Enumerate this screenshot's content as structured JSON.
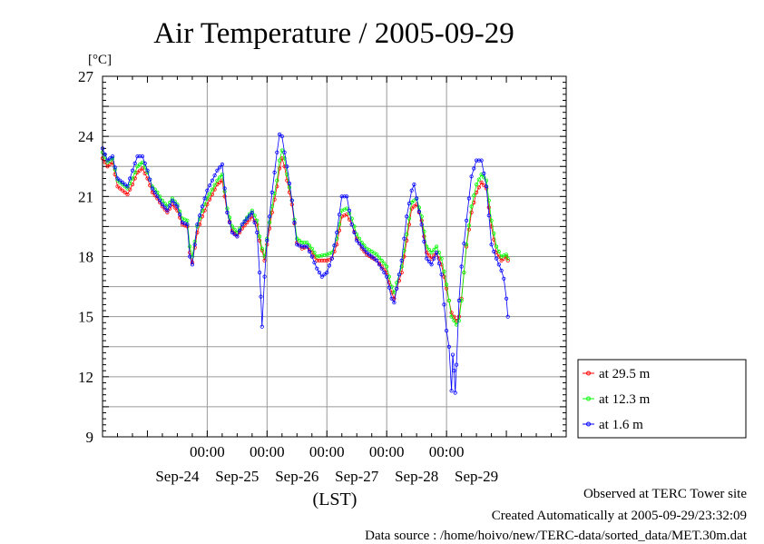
{
  "chart_data": {
    "type": "line",
    "title": "Air Temperature / 2005-09-29",
    "ylabel": "[°C]",
    "xlabel": "(LST)",
    "ylim": [
      9,
      27
    ],
    "yticks": [
      9,
      12,
      15,
      18,
      21,
      24,
      27
    ],
    "xlim_hours": [
      -42,
      144
    ],
    "x_time_labels": [
      {
        "hour": 0,
        "label": "00:00"
      },
      {
        "hour": 24,
        "label": "00:00"
      },
      {
        "hour": 48,
        "label": "00:00"
      },
      {
        "hour": 72,
        "label": "00:00"
      },
      {
        "hour": 96,
        "label": "00:00"
      }
    ],
    "x_date_labels": [
      {
        "hour": -12,
        "label": "Sep-24"
      },
      {
        "hour": 12,
        "label": "Sep-25"
      },
      {
        "hour": 36,
        "label": "Sep-26"
      },
      {
        "hour": 60,
        "label": "Sep-27"
      },
      {
        "hour": 84,
        "label": "Sep-28"
      },
      {
        "hour": 108,
        "label": "Sep-29"
      }
    ],
    "grid": true,
    "legend_position": "right",
    "series": [
      {
        "name": "at 29.5 m",
        "color": "#ff0000",
        "points": [
          [
            -42,
            22.9
          ],
          [
            -40,
            22.5
          ],
          [
            -38,
            22.7
          ],
          [
            -36,
            21.5
          ],
          [
            -32,
            21.1
          ],
          [
            -30,
            21.6
          ],
          [
            -28,
            22.2
          ],
          [
            -26,
            22.4
          ],
          [
            -24,
            21.9
          ],
          [
            -22,
            21.2
          ],
          [
            -20,
            20.9
          ],
          [
            -18,
            20.5
          ],
          [
            -16,
            20.2
          ],
          [
            -14,
            20.6
          ],
          [
            -12,
            20.3
          ],
          [
            -10,
            19.6
          ],
          [
            -8,
            19.5
          ],
          [
            -7,
            18.2
          ],
          [
            -6,
            17.7
          ],
          [
            -4,
            19.2
          ],
          [
            -2,
            20.0
          ],
          [
            0,
            20.6
          ],
          [
            4,
            21.6
          ],
          [
            6,
            21.8
          ],
          [
            8,
            20.2
          ],
          [
            10,
            19.3
          ],
          [
            12,
            19.0
          ],
          [
            14,
            19.4
          ],
          [
            18,
            20.0
          ],
          [
            20,
            19.6
          ],
          [
            21,
            18.8
          ],
          [
            22,
            18.3
          ],
          [
            23,
            17.8
          ],
          [
            24,
            18.6
          ],
          [
            26,
            20.2
          ],
          [
            28,
            21.5
          ],
          [
            29,
            22.4
          ],
          [
            30,
            22.9
          ],
          [
            31,
            22.5
          ],
          [
            32,
            21.8
          ],
          [
            34,
            20.6
          ],
          [
            36,
            18.7
          ],
          [
            38,
            18.4
          ],
          [
            40,
            18.5
          ],
          [
            42,
            18.2
          ],
          [
            44,
            17.8
          ],
          [
            48,
            17.8
          ],
          [
            50,
            17.9
          ],
          [
            52,
            18.6
          ],
          [
            54,
            20.0
          ],
          [
            56,
            20.1
          ],
          [
            58,
            19.6
          ],
          [
            60,
            18.9
          ],
          [
            62,
            18.4
          ],
          [
            64,
            18.1
          ],
          [
            68,
            17.8
          ],
          [
            70,
            17.5
          ],
          [
            72,
            17.2
          ],
          [
            74,
            16.2
          ],
          [
            75,
            15.9
          ],
          [
            76,
            16.4
          ],
          [
            78,
            17.2
          ],
          [
            80,
            18.8
          ],
          [
            82,
            20.4
          ],
          [
            84,
            20.6
          ],
          [
            86,
            19.8
          ],
          [
            88,
            18.2
          ],
          [
            90,
            17.9
          ],
          [
            92,
            18.2
          ],
          [
            94,
            17.6
          ],
          [
            96,
            16.4
          ],
          [
            98,
            15.2
          ],
          [
            100,
            14.8
          ],
          [
            101,
            15.0
          ],
          [
            102,
            15.9
          ],
          [
            104,
            18.5
          ],
          [
            106,
            20.2
          ],
          [
            108,
            21.2
          ],
          [
            110,
            21.7
          ],
          [
            112,
            21.4
          ],
          [
            114,
            19.5
          ],
          [
            116,
            18.2
          ],
          [
            118,
            17.8
          ],
          [
            120,
            18.0
          ],
          [
            120.6,
            17.8
          ]
        ]
      },
      {
        "name": "at 12.3 m",
        "color": "#00ff00",
        "points": [
          [
            -42,
            23.2
          ],
          [
            -40,
            22.7
          ],
          [
            -38,
            22.9
          ],
          [
            -36,
            21.8
          ],
          [
            -32,
            21.4
          ],
          [
            -30,
            21.9
          ],
          [
            -28,
            22.5
          ],
          [
            -26,
            22.7
          ],
          [
            -24,
            22.2
          ],
          [
            -22,
            21.5
          ],
          [
            -20,
            21.2
          ],
          [
            -18,
            20.8
          ],
          [
            -16,
            20.5
          ],
          [
            -14,
            20.9
          ],
          [
            -12,
            20.6
          ],
          [
            -10,
            19.9
          ],
          [
            -8,
            19.8
          ],
          [
            -7,
            18.5
          ],
          [
            -6,
            18.0
          ],
          [
            -4,
            19.5
          ],
          [
            -2,
            20.3
          ],
          [
            0,
            20.9
          ],
          [
            4,
            21.8
          ],
          [
            6,
            22.1
          ],
          [
            8,
            20.4
          ],
          [
            10,
            19.5
          ],
          [
            12,
            19.2
          ],
          [
            14,
            19.6
          ],
          [
            18,
            20.3
          ],
          [
            20,
            19.8
          ],
          [
            21,
            19.0
          ],
          [
            22,
            18.4
          ],
          [
            23,
            18.0
          ],
          [
            24,
            18.9
          ],
          [
            26,
            20.5
          ],
          [
            28,
            21.8
          ],
          [
            29,
            22.8
          ],
          [
            30,
            23.3
          ],
          [
            31,
            22.9
          ],
          [
            32,
            22.1
          ],
          [
            34,
            20.8
          ],
          [
            36,
            18.9
          ],
          [
            38,
            18.7
          ],
          [
            40,
            18.7
          ],
          [
            42,
            18.4
          ],
          [
            44,
            18.0
          ],
          [
            48,
            18.1
          ],
          [
            50,
            18.2
          ],
          [
            52,
            18.9
          ],
          [
            54,
            20.3
          ],
          [
            56,
            20.4
          ],
          [
            58,
            19.9
          ],
          [
            60,
            19.1
          ],
          [
            62,
            18.7
          ],
          [
            64,
            18.4
          ],
          [
            68,
            18.1
          ],
          [
            70,
            17.8
          ],
          [
            72,
            17.5
          ],
          [
            74,
            16.5
          ],
          [
            75,
            16.2
          ],
          [
            76,
            16.7
          ],
          [
            78,
            17.5
          ],
          [
            80,
            19.1
          ],
          [
            82,
            20.7
          ],
          [
            84,
            20.9
          ],
          [
            86,
            20.0
          ],
          [
            88,
            18.5
          ],
          [
            90,
            18.2
          ],
          [
            92,
            18.5
          ],
          [
            94,
            17.9
          ],
          [
            96,
            16.6
          ],
          [
            98,
            15.0
          ],
          [
            100,
            14.6
          ],
          [
            101,
            14.8
          ],
          [
            102,
            15.8
          ],
          [
            104,
            18.6
          ],
          [
            106,
            20.5
          ],
          [
            108,
            21.6
          ],
          [
            110,
            22.1
          ],
          [
            112,
            21.8
          ],
          [
            114,
            19.8
          ],
          [
            116,
            18.5
          ],
          [
            118,
            18.0
          ],
          [
            120,
            18.1
          ],
          [
            120.6,
            17.9
          ]
        ]
      },
      {
        "name": "at 1.6 m",
        "color": "#0000ff",
        "points": [
          [
            -42,
            23.4
          ],
          [
            -40,
            22.8
          ],
          [
            -38,
            23.0
          ],
          [
            -36,
            21.9
          ],
          [
            -32,
            21.5
          ],
          [
            -30,
            22.3
          ],
          [
            -28,
            23.0
          ],
          [
            -26,
            23.0
          ],
          [
            -24,
            22.3
          ],
          [
            -22,
            21.4
          ],
          [
            -20,
            21.0
          ],
          [
            -18,
            20.6
          ],
          [
            -16,
            20.3
          ],
          [
            -14,
            20.8
          ],
          [
            -12,
            20.5
          ],
          [
            -10,
            19.7
          ],
          [
            -8,
            19.6
          ],
          [
            -7,
            18.0
          ],
          [
            -6,
            17.6
          ],
          [
            -4,
            19.6
          ],
          [
            -2,
            20.5
          ],
          [
            0,
            21.3
          ],
          [
            4,
            22.3
          ],
          [
            6,
            22.6
          ],
          [
            8,
            20.2
          ],
          [
            10,
            19.2
          ],
          [
            12,
            19.0
          ],
          [
            14,
            19.6
          ],
          [
            18,
            20.2
          ],
          [
            20,
            19.2
          ],
          [
            21,
            17.2
          ],
          [
            21.5,
            16.0
          ],
          [
            22,
            14.5
          ],
          [
            23,
            17.0
          ],
          [
            24,
            18.8
          ],
          [
            26,
            21.2
          ],
          [
            28,
            23.2
          ],
          [
            29,
            24.1
          ],
          [
            30,
            24.0
          ],
          [
            31,
            23.2
          ],
          [
            32,
            22.5
          ],
          [
            34,
            20.8
          ],
          [
            36,
            18.6
          ],
          [
            38,
            18.5
          ],
          [
            40,
            18.5
          ],
          [
            42,
            18.0
          ],
          [
            44,
            17.4
          ],
          [
            46,
            17.0
          ],
          [
            48,
            17.2
          ],
          [
            50,
            17.9
          ],
          [
            52,
            19.2
          ],
          [
            54,
            21.0
          ],
          [
            56,
            21.0
          ],
          [
            58,
            19.6
          ],
          [
            60,
            18.8
          ],
          [
            62,
            18.5
          ],
          [
            64,
            18.2
          ],
          [
            68,
            17.8
          ],
          [
            70,
            17.4
          ],
          [
            72,
            17.0
          ],
          [
            74,
            15.9
          ],
          [
            75,
            15.7
          ],
          [
            76,
            16.4
          ],
          [
            78,
            17.8
          ],
          [
            80,
            20.0
          ],
          [
            82,
            21.3
          ],
          [
            83,
            21.6
          ],
          [
            84,
            20.9
          ],
          [
            86,
            19.6
          ],
          [
            88,
            17.9
          ],
          [
            90,
            17.6
          ],
          [
            92,
            18.2
          ],
          [
            94,
            17.1
          ],
          [
            95,
            15.6
          ],
          [
            96,
            14.3
          ],
          [
            97,
            13.5
          ],
          [
            98,
            11.3
          ],
          [
            98.5,
            13.1
          ],
          [
            99,
            12.3
          ],
          [
            99.5,
            11.2
          ],
          [
            100,
            12.6
          ],
          [
            101,
            15.8
          ],
          [
            102,
            17.5
          ],
          [
            104,
            19.8
          ],
          [
            106,
            22.0
          ],
          [
            108,
            22.8
          ],
          [
            110,
            22.8
          ],
          [
            112,
            21.5
          ],
          [
            114,
            18.6
          ],
          [
            116,
            17.9
          ],
          [
            118,
            17.3
          ],
          [
            119,
            16.9
          ],
          [
            120,
            15.9
          ],
          [
            120.6,
            15.0
          ]
        ]
      }
    ]
  },
  "footer": {
    "line1": "Observed at TERC Tower site",
    "line2": "Created Automatically at 2005-09-29/23:32:09",
    "line3": "Data source : /home/hoivo/new/TERC-data/sorted_data/MET.30m.dat"
  }
}
